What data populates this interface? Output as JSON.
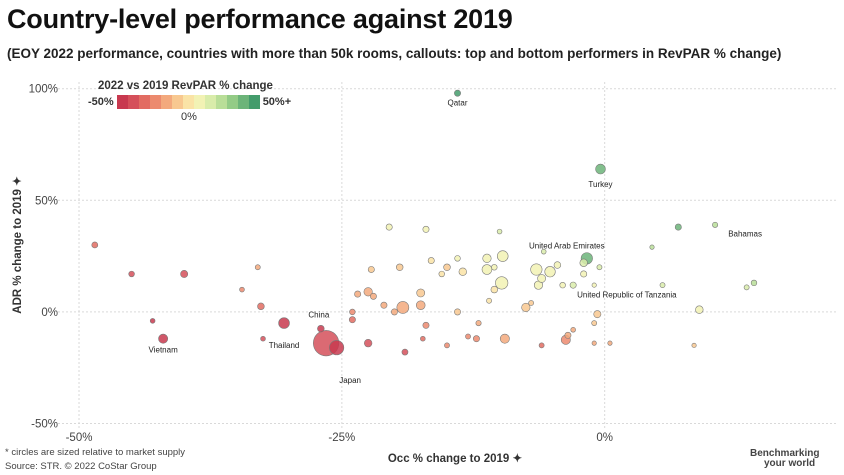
{
  "header": {
    "title": "Country-level performance against 2019",
    "subtitle": "(EOY 2022 performance, countries with more than 50k rooms, callouts: top and bottom performers in RevPAR % change)"
  },
  "legend": {
    "title": "2022 vs 2019 RevPAR % change",
    "min_label": "-50%",
    "max_label": "50%+",
    "mid_label": "0%",
    "colors": [
      "#c8394f",
      "#d5505a",
      "#e26c62",
      "#ec8a6e",
      "#f3a97d",
      "#f8c890",
      "#fae3a6",
      "#f2f2b4",
      "#d9ecaa",
      "#b9de98",
      "#93cb86",
      "#6cb479",
      "#449c6c"
    ]
  },
  "footnote": {
    "note": "* circles are sized relative to market supply",
    "source": "Source: STR. © 2022 CoStar Group"
  },
  "brand": {
    "line1": "Benchmarking",
    "line2": "your world"
  },
  "chart_data": {
    "type": "scatter",
    "xlabel": "Occ % change to 2019 ✦",
    "ylabel": "ADR % change to 2019 ✦",
    "xlim": [
      -0.52,
      0.22
    ],
    "ylim": [
      -0.52,
      1.03
    ],
    "xticks": [
      {
        "v": -0.5,
        "label": "-50%"
      },
      {
        "v": -0.25,
        "label": "-25%"
      },
      {
        "v": 0,
        "label": "0%"
      }
    ],
    "yticks": [
      {
        "v": 1.0,
        "label": "100%"
      },
      {
        "v": 0.5,
        "label": "50%"
      },
      {
        "v": 0,
        "label": "0%"
      },
      {
        "v": -0.5,
        "label": "-50%"
      }
    ],
    "grid": true,
    "size_meaning": "market supply",
    "color_meaning": "RevPAR % change",
    "points": [
      {
        "x": -0.265,
        "y": -0.14,
        "s": 5.0,
        "revpar": -0.43,
        "label": "Japan"
      },
      {
        "x": -0.255,
        "y": -0.16,
        "s": 1.6,
        "revpar": -0.58,
        "label": ""
      },
      {
        "x": -0.305,
        "y": -0.05,
        "s": 0.9,
        "revpar": -0.47,
        "label": "Thailand"
      },
      {
        "x": -0.27,
        "y": -0.075,
        "s": 0.35,
        "revpar": -0.55,
        "label": "China"
      },
      {
        "x": -0.42,
        "y": -0.12,
        "s": 0.65,
        "revpar": -0.62,
        "label": "Vietnam"
      },
      {
        "x": -0.004,
        "y": 0.64,
        "s": 0.75,
        "revpar": 0.45,
        "label": "Turkey"
      },
      {
        "x": -0.14,
        "y": 0.98,
        "s": 0.3,
        "revpar": 0.5,
        "label": "Qatar"
      },
      {
        "x": 0.105,
        "y": 0.39,
        "s": 0.22,
        "revpar": 0.25,
        "label": "Bahamas"
      },
      {
        "x": -0.017,
        "y": 0.24,
        "s": 1.0,
        "revpar": 0.4,
        "label": "United Arab Emirates"
      },
      {
        "x": -0.03,
        "y": 0.12,
        "s": 0.3,
        "revpar": 0.2,
        "label": "United Republic of Tanzania"
      },
      {
        "x": -0.485,
        "y": 0.3,
        "s": 0.28,
        "revpar": -0.3,
        "label": ""
      },
      {
        "x": -0.45,
        "y": 0.17,
        "s": 0.25,
        "revpar": -0.4,
        "label": ""
      },
      {
        "x": -0.4,
        "y": 0.17,
        "s": 0.4,
        "revpar": -0.4,
        "label": ""
      },
      {
        "x": -0.43,
        "y": -0.04,
        "s": 0.18,
        "revpar": -0.5,
        "label": ""
      },
      {
        "x": -0.33,
        "y": 0.2,
        "s": 0.2,
        "revpar": -0.2,
        "label": ""
      },
      {
        "x": -0.345,
        "y": 0.1,
        "s": 0.18,
        "revpar": -0.25,
        "label": ""
      },
      {
        "x": -0.327,
        "y": 0.025,
        "s": 0.35,
        "revpar": -0.3,
        "label": ""
      },
      {
        "x": -0.325,
        "y": -0.12,
        "s": 0.18,
        "revpar": -0.4,
        "label": ""
      },
      {
        "x": -0.235,
        "y": 0.08,
        "s": 0.3,
        "revpar": -0.2,
        "label": ""
      },
      {
        "x": -0.24,
        "y": 0.0,
        "s": 0.25,
        "revpar": -0.25,
        "label": ""
      },
      {
        "x": -0.225,
        "y": 0.09,
        "s": 0.55,
        "revpar": -0.15,
        "label": ""
      },
      {
        "x": -0.22,
        "y": 0.07,
        "s": 0.3,
        "revpar": -0.2,
        "label": ""
      },
      {
        "x": -0.225,
        "y": -0.14,
        "s": 0.45,
        "revpar": -0.4,
        "label": ""
      },
      {
        "x": -0.24,
        "y": -0.035,
        "s": 0.3,
        "revpar": -0.3,
        "label": ""
      },
      {
        "x": -0.222,
        "y": 0.19,
        "s": 0.3,
        "revpar": -0.1,
        "label": ""
      },
      {
        "x": -0.205,
        "y": 0.38,
        "s": 0.3,
        "revpar": 0.05,
        "label": ""
      },
      {
        "x": -0.2,
        "y": 0.0,
        "s": 0.3,
        "revpar": -0.18,
        "label": ""
      },
      {
        "x": -0.19,
        "y": -0.18,
        "s": 0.28,
        "revpar": -0.45,
        "label": ""
      },
      {
        "x": -0.195,
        "y": 0.2,
        "s": 0.35,
        "revpar": -0.08,
        "label": ""
      },
      {
        "x": -0.192,
        "y": 0.02,
        "s": 1.1,
        "revpar": -0.18,
        "label": ""
      },
      {
        "x": -0.21,
        "y": 0.03,
        "s": 0.3,
        "revpar": -0.15,
        "label": ""
      },
      {
        "x": -0.175,
        "y": 0.085,
        "s": 0.5,
        "revpar": -0.12,
        "label": ""
      },
      {
        "x": -0.17,
        "y": 0.37,
        "s": 0.3,
        "revpar": 0.05,
        "label": ""
      },
      {
        "x": -0.175,
        "y": 0.03,
        "s": 0.6,
        "revpar": -0.15,
        "label": ""
      },
      {
        "x": -0.17,
        "y": -0.06,
        "s": 0.3,
        "revpar": -0.25,
        "label": ""
      },
      {
        "x": -0.173,
        "y": -0.12,
        "s": 0.18,
        "revpar": -0.3,
        "label": ""
      },
      {
        "x": -0.165,
        "y": 0.23,
        "s": 0.3,
        "revpar": 0.0,
        "label": ""
      },
      {
        "x": -0.155,
        "y": 0.17,
        "s": 0.25,
        "revpar": 0.0,
        "label": ""
      },
      {
        "x": -0.15,
        "y": 0.2,
        "s": 0.35,
        "revpar": -0.05,
        "label": ""
      },
      {
        "x": -0.15,
        "y": -0.15,
        "s": 0.2,
        "revpar": -0.28,
        "label": ""
      },
      {
        "x": -0.14,
        "y": 0.24,
        "s": 0.25,
        "revpar": 0.05,
        "label": ""
      },
      {
        "x": -0.135,
        "y": 0.18,
        "s": 0.45,
        "revpar": 0.03,
        "label": ""
      },
      {
        "x": -0.14,
        "y": 0.0,
        "s": 0.3,
        "revpar": -0.12,
        "label": ""
      },
      {
        "x": -0.13,
        "y": -0.11,
        "s": 0.2,
        "revpar": -0.25,
        "label": ""
      },
      {
        "x": -0.12,
        "y": -0.05,
        "s": 0.22,
        "revpar": -0.18,
        "label": ""
      },
      {
        "x": -0.122,
        "y": -0.12,
        "s": 0.3,
        "revpar": -0.22,
        "label": ""
      },
      {
        "x": -0.112,
        "y": 0.24,
        "s": 0.55,
        "revpar": 0.1,
        "label": ""
      },
      {
        "x": -0.112,
        "y": 0.19,
        "s": 0.75,
        "revpar": 0.08,
        "label": ""
      },
      {
        "x": -0.097,
        "y": 0.25,
        "s": 0.9,
        "revpar": 0.12,
        "label": ""
      },
      {
        "x": -0.098,
        "y": 0.13,
        "s": 1.2,
        "revpar": 0.05,
        "label": ""
      },
      {
        "x": -0.105,
        "y": 0.1,
        "s": 0.35,
        "revpar": 0.02,
        "label": ""
      },
      {
        "x": -0.11,
        "y": 0.05,
        "s": 0.2,
        "revpar": 0.0,
        "label": ""
      },
      {
        "x": -0.095,
        "y": -0.12,
        "s": 0.65,
        "revpar": -0.2,
        "label": ""
      },
      {
        "x": -0.1,
        "y": 0.36,
        "s": 0.18,
        "revpar": 0.15,
        "label": ""
      },
      {
        "x": -0.105,
        "y": 0.2,
        "s": 0.25,
        "revpar": 0.06,
        "label": ""
      },
      {
        "x": -0.075,
        "y": 0.02,
        "s": 0.55,
        "revpar": -0.05,
        "label": ""
      },
      {
        "x": -0.07,
        "y": 0.04,
        "s": 0.2,
        "revpar": -0.05,
        "label": ""
      },
      {
        "x": -0.065,
        "y": 0.19,
        "s": 1.0,
        "revpar": 0.12,
        "label": ""
      },
      {
        "x": -0.06,
        "y": 0.15,
        "s": 0.5,
        "revpar": 0.08,
        "label": ""
      },
      {
        "x": -0.063,
        "y": 0.12,
        "s": 0.55,
        "revpar": 0.05,
        "label": ""
      },
      {
        "x": -0.052,
        "y": 0.18,
        "s": 0.85,
        "revpar": 0.1,
        "label": ""
      },
      {
        "x": -0.045,
        "y": 0.21,
        "s": 0.35,
        "revpar": 0.1,
        "label": ""
      },
      {
        "x": -0.058,
        "y": 0.27,
        "s": 0.18,
        "revpar": 0.15,
        "label": ""
      },
      {
        "x": -0.06,
        "y": -0.15,
        "s": 0.2,
        "revpar": -0.3,
        "label": ""
      },
      {
        "x": -0.037,
        "y": -0.125,
        "s": 0.65,
        "revpar": -0.22,
        "label": ""
      },
      {
        "x": -0.035,
        "y": -0.105,
        "s": 0.3,
        "revpar": -0.2,
        "label": ""
      },
      {
        "x": -0.03,
        "y": -0.08,
        "s": 0.18,
        "revpar": -0.18,
        "label": ""
      },
      {
        "x": -0.04,
        "y": 0.12,
        "s": 0.25,
        "revpar": 0.05,
        "label": ""
      },
      {
        "x": -0.02,
        "y": 0.22,
        "s": 0.45,
        "revpar": 0.15,
        "label": ""
      },
      {
        "x": -0.02,
        "y": 0.17,
        "s": 0.3,
        "revpar": 0.1,
        "label": ""
      },
      {
        "x": -0.005,
        "y": 0.2,
        "s": 0.2,
        "revpar": 0.15,
        "label": ""
      },
      {
        "x": -0.007,
        "y": -0.01,
        "s": 0.4,
        "revpar": -0.05,
        "label": ""
      },
      {
        "x": -0.01,
        "y": -0.05,
        "s": 0.2,
        "revpar": -0.07,
        "label": ""
      },
      {
        "x": -0.01,
        "y": -0.14,
        "s": 0.15,
        "revpar": -0.15,
        "label": ""
      },
      {
        "x": 0.005,
        "y": -0.14,
        "s": 0.15,
        "revpar": -0.15,
        "label": ""
      },
      {
        "x": -0.01,
        "y": 0.12,
        "s": 0.15,
        "revpar": 0.1,
        "label": ""
      },
      {
        "x": 0.045,
        "y": 0.29,
        "s": 0.15,
        "revpar": 0.25,
        "label": ""
      },
      {
        "x": 0.055,
        "y": 0.12,
        "s": 0.2,
        "revpar": 0.15,
        "label": ""
      },
      {
        "x": 0.07,
        "y": 0.38,
        "s": 0.3,
        "revpar": 0.38,
        "label": ""
      },
      {
        "x": 0.085,
        "y": -0.15,
        "s": 0.15,
        "revpar": -0.1,
        "label": ""
      },
      {
        "x": 0.09,
        "y": 0.01,
        "s": 0.45,
        "revpar": 0.1,
        "label": ""
      },
      {
        "x": 0.135,
        "y": 0.11,
        "s": 0.2,
        "revpar": 0.2,
        "label": ""
      },
      {
        "x": 0.142,
        "y": 0.13,
        "s": 0.25,
        "revpar": 0.25,
        "label": ""
      }
    ]
  }
}
